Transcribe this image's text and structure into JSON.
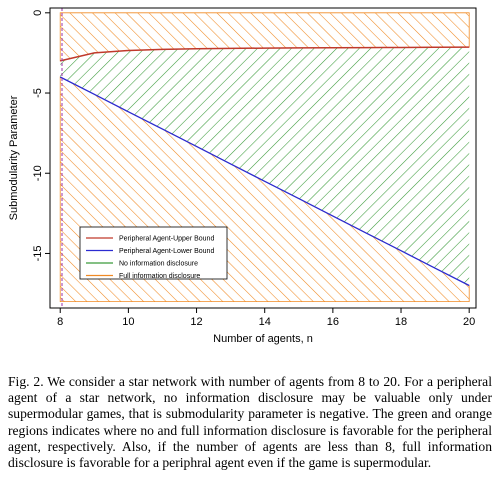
{
  "chart_data": {
    "type": "area",
    "xlabel": "Number of agents, n",
    "ylabel": "Submodularity Parameter",
    "xlim": [
      7.7,
      20.2
    ],
    "ylim": [
      -18.4,
      0.3
    ],
    "x_ticks": [
      8,
      10,
      12,
      14,
      16,
      18,
      20
    ],
    "y_ticks": [
      0,
      -5,
      -10,
      -15
    ],
    "x": [
      8,
      9,
      10,
      11,
      12,
      13,
      14,
      15,
      16,
      17,
      18,
      19,
      20
    ],
    "series": [
      {
        "name": "Peripheral Agent-Upper Bound",
        "color": "#c0392b",
        "values": [
          -3.0,
          -2.5,
          -2.35,
          -2.28,
          -2.24,
          -2.22,
          -2.2,
          -2.19,
          -2.18,
          -2.17,
          -2.16,
          -2.15,
          -2.14
        ]
      },
      {
        "name": "Peripheral Agent-Lower Bound",
        "color": "#2b2bd1",
        "values": [
          -4.0,
          -5.08,
          -6.17,
          -7.25,
          -8.33,
          -9.42,
          -10.5,
          -11.58,
          -12.67,
          -13.75,
          -14.83,
          -15.92,
          -17.0
        ]
      },
      {
        "name": "No information disclosure",
        "color": "#3a9a3a",
        "region": "between lower bound and upper bound"
      },
      {
        "name": "Full information disclosure",
        "color": "#f08a24",
        "region": "above upper bound and below lower bound, down to -18"
      }
    ],
    "region_floor": -18,
    "legend_position": "bottom-left",
    "grid": false
  },
  "caption": "Fig. 2.  We consider a star network with number of agents from 8 to 20. For a peripheral agent of a star network, no information disclosure may be valuable only under supermodular games, that is submodularity parameter is negative. The green and orange regions indicates where no and full information disclosure is favorable for the peripheral agent, respectively. Also, if the number of agents are less than 8, full information disclosure is favorable for a periphral agent even if the game is supermodular."
}
